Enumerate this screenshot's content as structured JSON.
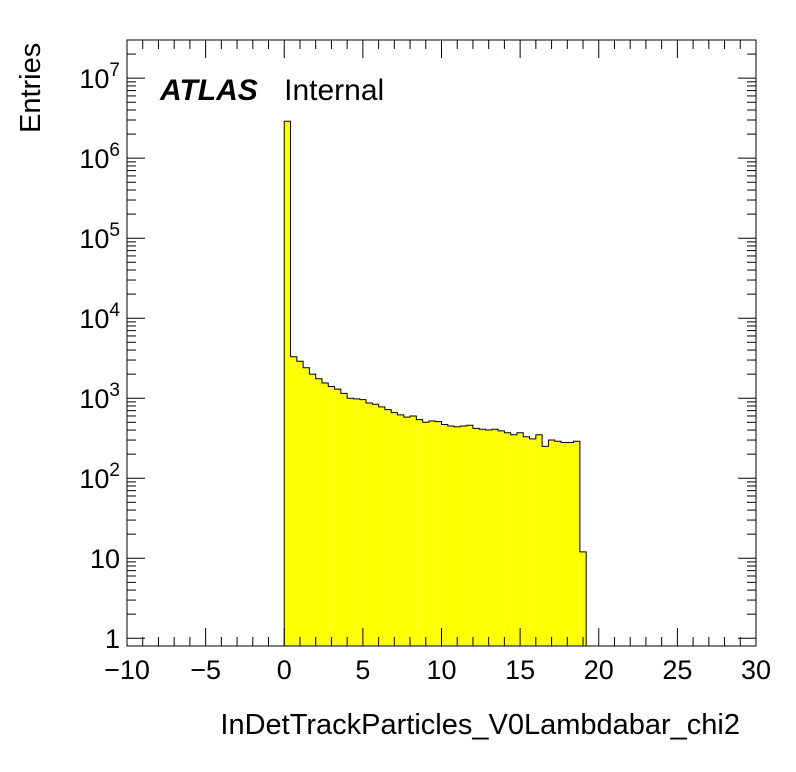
{
  "chart_data": {
    "type": "histogram",
    "title": "",
    "xlabel": "InDetTrackParticles_V0Lambdabar_chi2",
    "ylabel": "Entries",
    "xlim": [
      -10,
      30
    ],
    "ylim": [
      0.8,
      30000000
    ],
    "yscale": "log",
    "x_ticks": [
      -10,
      -5,
      0,
      5,
      10,
      15,
      20,
      25,
      30
    ],
    "x_tick_labels": [
      "−10",
      "−5",
      "0",
      "5",
      "10",
      "15",
      "20",
      "25",
      "30"
    ],
    "y_ticks": [
      {
        "value": 1,
        "base": "1",
        "exp": ""
      },
      {
        "value": 10,
        "base": "10",
        "exp": ""
      },
      {
        "value": 100,
        "base": "10",
        "exp": "2"
      },
      {
        "value": 1000,
        "base": "10",
        "exp": "3"
      },
      {
        "value": 10000,
        "base": "10",
        "exp": "4"
      },
      {
        "value": 100000,
        "base": "10",
        "exp": "5"
      },
      {
        "value": 1000000,
        "base": "10",
        "exp": "6"
      },
      {
        "value": 10000000,
        "base": "10",
        "exp": "7"
      }
    ],
    "bins": {
      "edges_start": 0,
      "width": 0.4,
      "counts": [
        2900000,
        3300,
        2900,
        2400,
        2000,
        1750,
        1550,
        1400,
        1300,
        1150,
        1000,
        980,
        960,
        870,
        840,
        780,
        720,
        660,
        620,
        580,
        600,
        540,
        500,
        520,
        510,
        470,
        450,
        440,
        450,
        460,
        420,
        410,
        400,
        410,
        390,
        370,
        350,
        370,
        330,
        310,
        350,
        250,
        300,
        290,
        280,
        280,
        290,
        12
      ]
    },
    "fill_color": "#ffff00",
    "line_color": "#000000",
    "grid": false,
    "annotations": {
      "experiment": "ATLAS",
      "status": "Internal"
    }
  }
}
